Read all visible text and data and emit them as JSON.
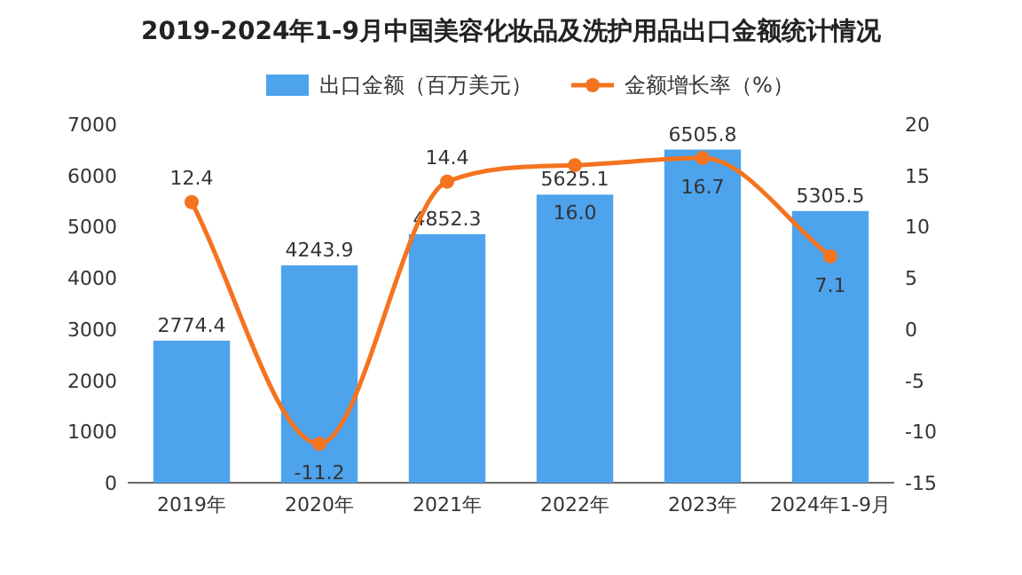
{
  "chart_data": {
    "type": "bar",
    "title": "2019-2024年1-9月中国美容化妆品及洗护用品出口金额统计情况",
    "categories": [
      "2019年",
      "2020年",
      "2021年",
      "2022年",
      "2023年",
      "2024年1-9月"
    ],
    "series": [
      {
        "name": "出口金额（百万美元）",
        "color": "#4da3ec",
        "values": [
          2774.4,
          4243.9,
          4852.3,
          5625.1,
          6505.8,
          5305.5
        ],
        "value_labels": [
          "2774.4",
          "4243.9",
          "4852.3",
          "5625.1",
          "6505.8",
          "5305.5"
        ]
      },
      {
        "name": "金额增长率（%）",
        "type": "line",
        "axis": "y2",
        "color": "#f4731f",
        "marker": "circle",
        "values": [
          12.4,
          -11.2,
          14.4,
          16.0,
          16.7,
          7.1
        ],
        "value_labels": [
          "12.4",
          "-11.2",
          "14.4",
          "16.0",
          "16.7",
          "7.1"
        ]
      }
    ],
    "ylim": [
      0,
      7000
    ],
    "yticks": [
      0,
      1000,
      2000,
      3000,
      4000,
      5000,
      6000,
      7000
    ],
    "y2lim": [
      -15,
      20
    ],
    "y2ticks": [
      -15,
      -10,
      -5,
      0,
      5,
      10,
      15,
      20
    ],
    "legend": "top",
    "grid": false
  }
}
